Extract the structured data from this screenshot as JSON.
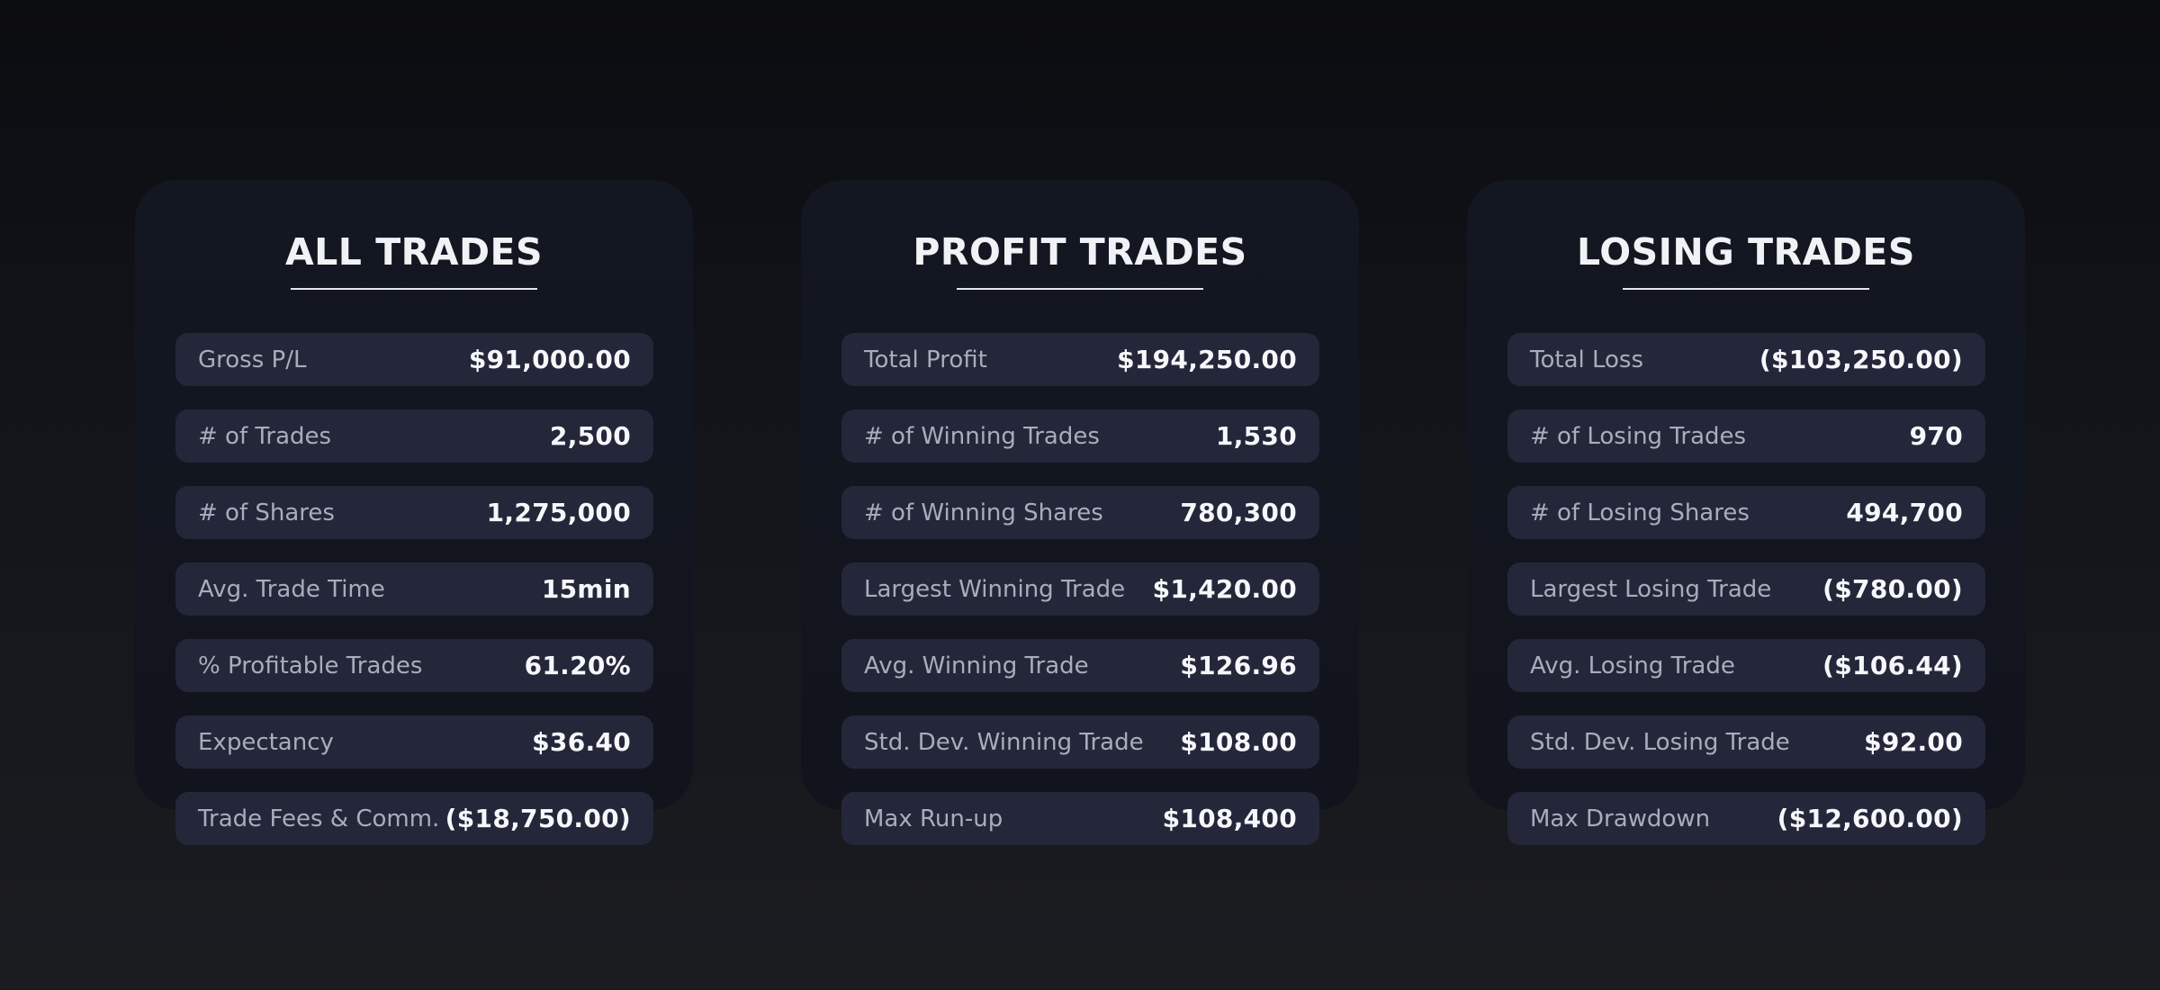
{
  "panels": [
    {
      "title": "ALL TRADES",
      "rows": [
        {
          "label": "Gross P/L",
          "value": "$91,000.00"
        },
        {
          "label": "# of Trades",
          "value": "2,500"
        },
        {
          "label": "# of Shares",
          "value": "1,275,000"
        },
        {
          "label": "Avg. Trade Time",
          "value": "15min"
        },
        {
          "label": "% Profitable Trades",
          "value": "61.20%"
        },
        {
          "label": "Expectancy",
          "value": "$36.40"
        },
        {
          "label": "Trade Fees & Comm.",
          "value": "($18,750.00)"
        }
      ]
    },
    {
      "title": "PROFIT TRADES",
      "rows": [
        {
          "label": "Total Profit",
          "value": "$194,250.00"
        },
        {
          "label": "# of Winning Trades",
          "value": "1,530"
        },
        {
          "label": "# of Winning Shares",
          "value": "780,300"
        },
        {
          "label": "Largest Winning Trade",
          "value": "$1,420.00"
        },
        {
          "label": "Avg. Winning Trade",
          "value": "$126.96"
        },
        {
          "label": "Std. Dev. Winning Trade",
          "value": "$108.00"
        },
        {
          "label": "Max Run-up",
          "value": "$108,400"
        }
      ]
    },
    {
      "title": "LOSING TRADES",
      "rows": [
        {
          "label": "Total Loss",
          "value": "($103,250.00)"
        },
        {
          "label": "# of Losing Trades",
          "value": "970"
        },
        {
          "label": "# of Losing Shares",
          "value": "494,700"
        },
        {
          "label": "Largest Losing Trade",
          "value": "($780.00)"
        },
        {
          "label": "Avg. Losing Trade",
          "value": "($106.44)"
        },
        {
          "label": "Std. Dev. Losing Trade",
          "value": "$92.00"
        },
        {
          "label": "Max Drawdown",
          "value": "($12,600.00)"
        }
      ]
    }
  ]
}
